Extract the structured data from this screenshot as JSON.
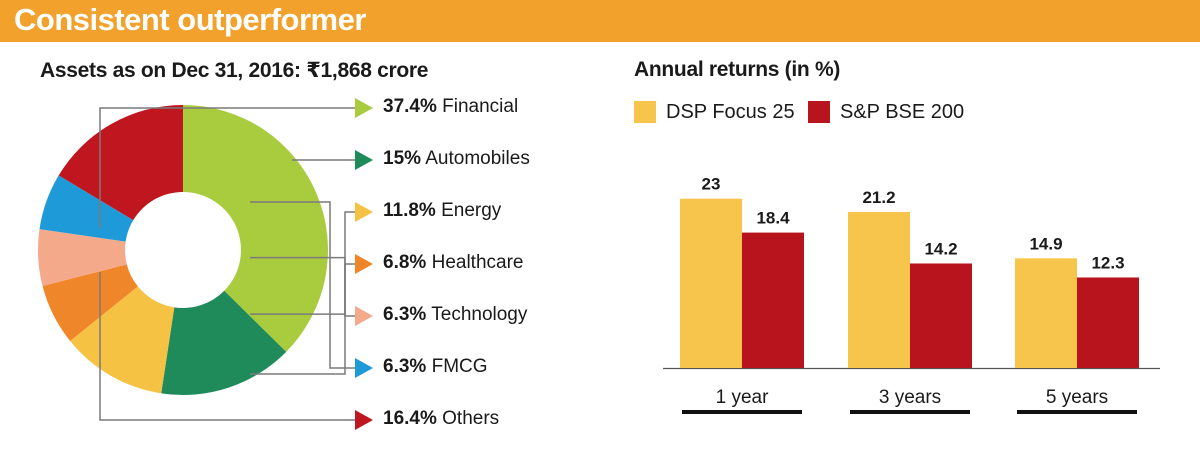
{
  "header": {
    "title": "Consistent outperformer"
  },
  "donut": {
    "subtitle": "Assets as on Dec 31, 2016: ₹1,868 crore",
    "chart_data": {
      "type": "pie",
      "slices": [
        {
          "pct": "37.4%",
          "name": "Financial",
          "value": 37.4,
          "color": "#a9cb3e"
        },
        {
          "pct": "15%",
          "name": "Automobiles",
          "value": 15.0,
          "color": "#1f8a5a"
        },
        {
          "pct": "11.8%",
          "name": "Energy",
          "value": 11.8,
          "color": "#f6c244"
        },
        {
          "pct": "6.8%",
          "name": "Healthcare",
          "value": 6.8,
          "color": "#f0862a"
        },
        {
          "pct": "6.3%",
          "name": "Technology",
          "value": 6.3,
          "color": "#f4a98a"
        },
        {
          "pct": "6.3%",
          "name": "FMCG",
          "value": 6.3,
          "color": "#1f9ad9"
        },
        {
          "pct": "16.4%",
          "name": "Others",
          "value": 16.4,
          "color": "#c0161f"
        }
      ]
    }
  },
  "returns": {
    "subtitle": "Annual returns (in %)",
    "chart_data": {
      "type": "bar",
      "categories": [
        "1 year",
        "3 years",
        "5 years"
      ],
      "series": [
        {
          "name": "DSP Focus 25",
          "values": [
            23,
            21.2,
            14.9
          ],
          "labels": [
            "23",
            "21.2",
            "14.9"
          ],
          "color": "#f7c44c"
        },
        {
          "name": "S&P BSE 200",
          "values": [
            18.4,
            14.2,
            12.3
          ],
          "labels": [
            "18.4",
            "14.2",
            "12.3"
          ],
          "color": "#b8141d"
        }
      ],
      "ylim": [
        0,
        25
      ]
    }
  }
}
